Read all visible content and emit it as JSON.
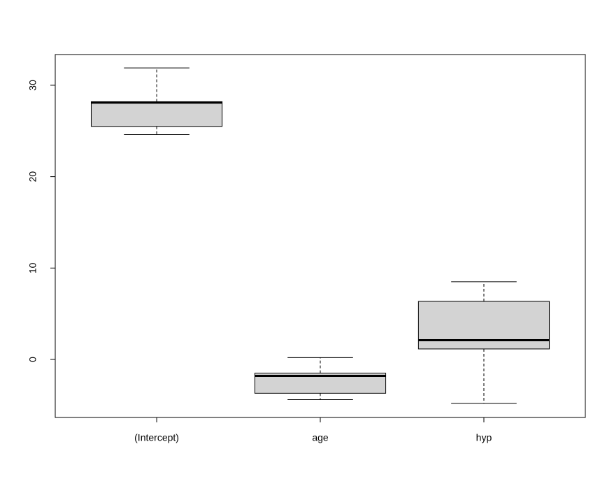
{
  "chart_data": {
    "type": "box",
    "categories": [
      "(Intercept)",
      "age",
      "hyp"
    ],
    "min": [
      24.6,
      -4.4,
      -4.8
    ],
    "q1": [
      25.5,
      -3.7,
      1.15
    ],
    "median": [
      28.1,
      -1.8,
      2.1
    ],
    "q3": [
      28.2,
      -1.5,
      6.35
    ],
    "max": [
      31.9,
      0.2,
      8.5
    ],
    "color": "#d3d3d3",
    "ylim": [
      -6.35,
      33.36
    ],
    "yticks": [
      0,
      10,
      20,
      30
    ]
  }
}
